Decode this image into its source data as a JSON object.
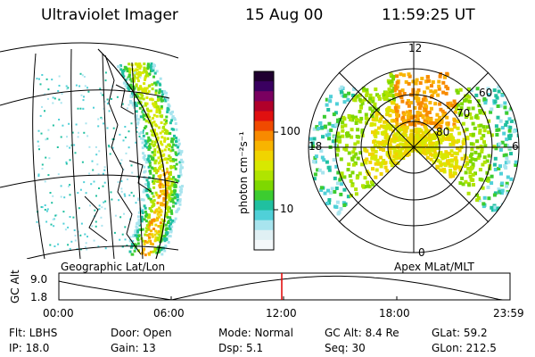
{
  "header": {
    "instrument": "Ultraviolet Imager",
    "date": "15 Aug 00",
    "time": "11:59:25 UT"
  },
  "geo_panel": {
    "label": "Geographic Lat/Lon"
  },
  "colorbar": {
    "unit_label": "photon cm⁻²s⁻¹",
    "ticks": [
      "100",
      "10"
    ],
    "colors": [
      "#200030",
      "#3a0060",
      "#7a0060",
      "#b0002a",
      "#e01010",
      "#f04a00",
      "#f88a00",
      "#f8b400",
      "#f0d400",
      "#d8e800",
      "#b0e400",
      "#7ed800",
      "#3ccc30",
      "#20c0a0",
      "#50d0d8",
      "#a8e4ee",
      "#e0f0f4",
      "#f4f8fa"
    ]
  },
  "polar_panel": {
    "label": "Apex MLat/MLT",
    "mlt_labels": {
      "top": "12",
      "left": "18",
      "right": "6",
      "bottom": "0"
    },
    "lat_labels": [
      "60",
      "70",
      "80"
    ]
  },
  "altitude_plot": {
    "ylabel": "GC Alt",
    "yticks": [
      "9.0",
      "1.8"
    ],
    "xticks": [
      "00:00",
      "06:00",
      "12:00",
      "18:00",
      "23:59"
    ],
    "marker_time": "11:59:25",
    "accent_color": "#e00000"
  },
  "info": {
    "flt": "Flt: LBHS",
    "ip": "IP: 18.0",
    "door": "Door: Open",
    "gain": "Gain: 13",
    "mode": "Mode: Normal",
    "dsp": "Dsp:    5.1",
    "gcalt": "GC Alt: 8.4 Re",
    "seq": "Seq: 30",
    "glat": "GLat:  59.2",
    "glon": "GLon: 212.5"
  }
}
